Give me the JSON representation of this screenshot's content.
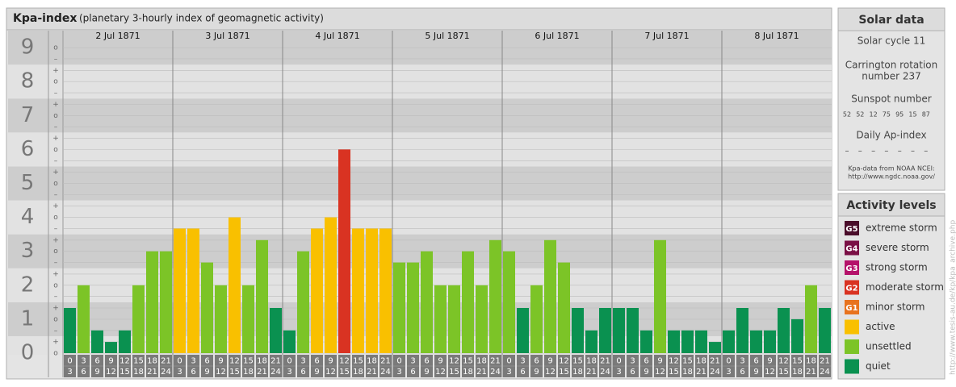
{
  "chart_data": {
    "type": "bar",
    "title": "Kpa-index",
    "subtitle": "(planetary 3-hourly index of geomagnetic activity)",
    "days": [
      "2 Jul 1871",
      "3 Jul 1871",
      "4 Jul 1871",
      "5 Jul 1871",
      "6 Jul 1871",
      "7 Jul 1871",
      "8 Jul 1871"
    ],
    "hours": [
      [
        "0",
        "3"
      ],
      [
        "3",
        "6"
      ],
      [
        "6",
        "9"
      ],
      [
        "9",
        "12"
      ],
      [
        "12",
        "15"
      ],
      [
        "15",
        "18"
      ],
      [
        "18",
        "21"
      ],
      [
        "21",
        "24"
      ],
      [
        "0",
        "3"
      ],
      [
        "3",
        "6"
      ],
      [
        "6",
        "9"
      ],
      [
        "9",
        "12"
      ],
      [
        "12",
        "15"
      ],
      [
        "15",
        "18"
      ],
      [
        "18",
        "21"
      ],
      [
        "21",
        "24"
      ],
      [
        "0",
        "3"
      ],
      [
        "3",
        "6"
      ],
      [
        "6",
        "9"
      ],
      [
        "9",
        "12"
      ],
      [
        "12",
        "15"
      ],
      [
        "15",
        "18"
      ],
      [
        "18",
        "21"
      ],
      [
        "21",
        "24"
      ],
      [
        "0",
        "3"
      ],
      [
        "3",
        "6"
      ],
      [
        "6",
        "9"
      ],
      [
        "9",
        "12"
      ],
      [
        "12",
        "15"
      ],
      [
        "15",
        "18"
      ],
      [
        "18",
        "21"
      ],
      [
        "21",
        "24"
      ],
      [
        "0",
        "3"
      ],
      [
        "3",
        "6"
      ],
      [
        "6",
        "9"
      ],
      [
        "9",
        "12"
      ],
      [
        "12",
        "15"
      ],
      [
        "15",
        "18"
      ],
      [
        "18",
        "21"
      ],
      [
        "21",
        "24"
      ],
      [
        "0",
        "3"
      ],
      [
        "3",
        "6"
      ],
      [
        "6",
        "9"
      ],
      [
        "9",
        "12"
      ],
      [
        "12",
        "15"
      ],
      [
        "15",
        "18"
      ],
      [
        "18",
        "21"
      ],
      [
        "21",
        "24"
      ],
      [
        "0",
        "3"
      ],
      [
        "3",
        "6"
      ],
      [
        "6",
        "9"
      ],
      [
        "9",
        "12"
      ],
      [
        "12",
        "15"
      ],
      [
        "15",
        "18"
      ],
      [
        "18",
        "21"
      ],
      [
        "21",
        "24"
      ]
    ],
    "values": [
      1.33,
      2,
      0.67,
      0.33,
      0.67,
      2,
      3,
      3,
      3.67,
      3.67,
      2.67,
      2,
      4,
      2,
      3.33,
      1.33,
      0.67,
      3,
      3.67,
      4,
      6,
      3.67,
      3.67,
      3.67,
      2.67,
      2.67,
      3,
      2,
      2,
      3,
      2,
      3.33,
      3,
      1.33,
      2,
      3.33,
      2.67,
      1.33,
      0.67,
      1.33,
      1.33,
      1.33,
      0.67,
      3.33,
      0.67,
      0.67,
      0.67,
      0.33,
      0.67,
      1.33,
      0.67,
      0.67,
      1.33,
      1,
      2,
      1.33
    ],
    "colors": [
      "#0a9150",
      "#7cc427",
      "#0a9150",
      "#0a9150",
      "#0a9150",
      "#7cc427",
      "#7cc427",
      "#7cc427",
      "#f9c000",
      "#f9c000",
      "#7cc427",
      "#7cc427",
      "#f9c000",
      "#7cc427",
      "#7cc427",
      "#0a9150",
      "#0a9150",
      "#7cc427",
      "#f9c000",
      "#f9c000",
      "#d93322",
      "#f9c000",
      "#f9c000",
      "#f9c000",
      "#7cc427",
      "#7cc427",
      "#7cc427",
      "#7cc427",
      "#7cc427",
      "#7cc427",
      "#7cc427",
      "#7cc427",
      "#7cc427",
      "#0a9150",
      "#7cc427",
      "#7cc427",
      "#7cc427",
      "#0a9150",
      "#0a9150",
      "#0a9150",
      "#0a9150",
      "#0a9150",
      "#0a9150",
      "#7cc427",
      "#0a9150",
      "#0a9150",
      "#0a9150",
      "#0a9150",
      "#0a9150",
      "#0a9150",
      "#0a9150",
      "#0a9150",
      "#0a9150",
      "#0a9150",
      "#7cc427",
      "#0a9150"
    ],
    "ylim": [
      0,
      9.5
    ],
    "yticks": [
      0,
      1,
      2,
      3,
      4,
      5,
      6,
      7,
      8,
      9
    ],
    "minor_ticks": [
      {
        "value": 9,
        "label": "o"
      },
      {
        "value": 8.67,
        "label": "–"
      },
      {
        "value": 8.33,
        "label": "+"
      },
      {
        "value": 8,
        "label": "o"
      },
      {
        "value": 7.67,
        "label": "–"
      },
      {
        "value": 7.33,
        "label": "+"
      },
      {
        "value": 7,
        "label": "o"
      },
      {
        "value": 6.67,
        "label": "–"
      },
      {
        "value": 6.33,
        "label": "+"
      },
      {
        "value": 6,
        "label": "o"
      },
      {
        "value": 5.67,
        "label": "–"
      },
      {
        "value": 5.33,
        "label": "+"
      },
      {
        "value": 5,
        "label": "o"
      },
      {
        "value": 4.67,
        "label": "–"
      },
      {
        "value": 4.33,
        "label": "+"
      },
      {
        "value": 4,
        "label": "o"
      },
      {
        "value": 3.67,
        "label": "–"
      },
      {
        "value": 3.33,
        "label": "+"
      },
      {
        "value": 3,
        "label": "o"
      },
      {
        "value": 2.67,
        "label": "–"
      },
      {
        "value": 2.33,
        "label": "+"
      },
      {
        "value": 2,
        "label": "o"
      },
      {
        "value": 1.67,
        "label": "–"
      },
      {
        "value": 1.33,
        "label": "+"
      },
      {
        "value": 1,
        "label": "o"
      },
      {
        "value": 0.67,
        "label": "–"
      },
      {
        "value": 0.33,
        "label": "+"
      },
      {
        "value": 0,
        "label": "o"
      }
    ],
    "grid": true
  },
  "solar_data": {
    "title": "Solar data",
    "cycle": "Solar cycle 11",
    "carrington": [
      "Carrington rotation",
      "number 237"
    ],
    "sunspot_label": "Sunspot number",
    "sunspot_numbers": [
      52,
      52,
      12,
      75,
      95,
      15,
      87
    ],
    "ap_label": "Daily Ap-index",
    "ap_values": [
      "–",
      "–",
      "–",
      "–",
      "–",
      "–",
      "–"
    ],
    "source": [
      "Kpa-data from NOAA NCEI:",
      "http://www.ngdc.noaa.gov/"
    ]
  },
  "activity_levels": {
    "title": "Activity levels",
    "levels": [
      {
        "code": "G5",
        "label": "extreme storm",
        "color": "#4a0d2a"
      },
      {
        "code": "G4",
        "label": "severe storm",
        "color": "#7a1045"
      },
      {
        "code": "G3",
        "label": "strong storm",
        "color": "#b5126a"
      },
      {
        "code": "G2",
        "label": "moderate storm",
        "color": "#d93322"
      },
      {
        "code": "G1",
        "label": "minor storm",
        "color": "#e8731e"
      },
      {
        "label": "active",
        "color": "#f9c000"
      },
      {
        "label": "unsettled",
        "color": "#7cc427"
      },
      {
        "label": "quiet",
        "color": "#0a9150"
      }
    ]
  },
  "credit": "http://www.tesis-au.de/kp/kpa_archive.php"
}
